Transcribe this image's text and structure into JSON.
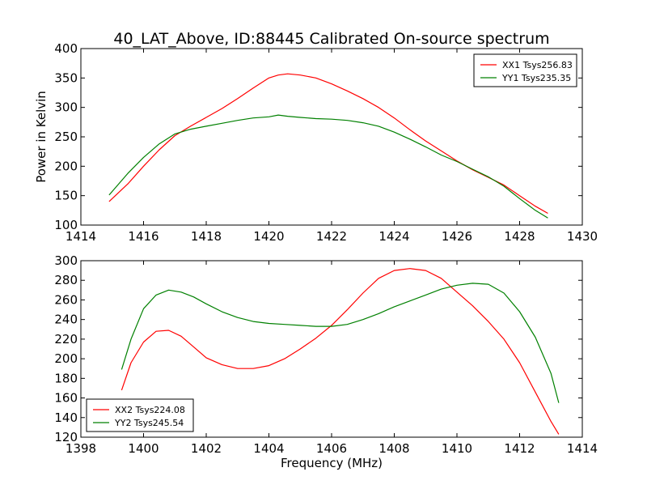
{
  "figure": {
    "title": "40_LAT_Above, ID:88445 Calibrated On-source spectrum",
    "ylabel": "Power in Kelvin",
    "xlabel": "Frequency (MHz)"
  },
  "chart_data": [
    {
      "type": "line",
      "xlim": [
        1414,
        1430
      ],
      "ylim": [
        100,
        400
      ],
      "xticks": [
        "1414",
        "1416",
        "1418",
        "1420",
        "1422",
        "1424",
        "1426",
        "1428",
        "1430"
      ],
      "yticks": [
        "100",
        "150",
        "200",
        "250",
        "300",
        "350",
        "400"
      ],
      "legend_position": "top-right",
      "series": [
        {
          "name": "XX1 Tsys256.83",
          "color": "#ff0000",
          "x": [
            1414.9,
            1415.5,
            1416,
            1416.5,
            1417,
            1417.5,
            1418,
            1418.5,
            1419,
            1419.5,
            1420,
            1420.3,
            1420.6,
            1421,
            1421.5,
            1422,
            1422.5,
            1423,
            1423.5,
            1424,
            1424.5,
            1425,
            1425.5,
            1426,
            1426.5,
            1427,
            1427.5,
            1428,
            1428.5,
            1428.9
          ],
          "y": [
            140,
            170,
            200,
            228,
            252,
            268,
            283,
            298,
            315,
            333,
            350,
            355,
            357,
            355,
            350,
            340,
            328,
            315,
            300,
            282,
            262,
            243,
            226,
            209,
            194,
            181,
            168,
            150,
            132,
            120
          ]
        },
        {
          "name": "YY1 Tsys235.35",
          "color": "#008000",
          "x": [
            1414.9,
            1415.5,
            1416,
            1416.5,
            1417,
            1417.5,
            1418,
            1418.5,
            1419,
            1419.5,
            1420,
            1420.3,
            1420.6,
            1421,
            1421.5,
            1422,
            1422.5,
            1423,
            1423.5,
            1424,
            1424.5,
            1425,
            1425.5,
            1426,
            1426.5,
            1427,
            1427.5,
            1428,
            1428.5,
            1428.9
          ],
          "y": [
            151,
            188,
            215,
            238,
            255,
            263,
            268,
            273,
            278,
            282,
            284,
            287,
            285,
            283,
            281,
            280,
            278,
            274,
            268,
            258,
            246,
            233,
            219,
            208,
            195,
            182,
            166,
            145,
            125,
            112
          ]
        }
      ]
    },
    {
      "type": "line",
      "xlim": [
        1398,
        1414
      ],
      "ylim": [
        120,
        300
      ],
      "xticks": [
        "1398",
        "1400",
        "1402",
        "1404",
        "1406",
        "1408",
        "1410",
        "1412",
        "1414"
      ],
      "yticks": [
        "120",
        "140",
        "160",
        "180",
        "200",
        "220",
        "240",
        "260",
        "280",
        "300"
      ],
      "legend_position": "bottom-left",
      "series": [
        {
          "name": "XX2 Tsys224.08",
          "color": "#ff0000",
          "x": [
            1399.3,
            1399.6,
            1400,
            1400.4,
            1400.8,
            1401.2,
            1401.6,
            1402,
            1402.5,
            1403,
            1403.5,
            1404,
            1404.5,
            1405,
            1405.5,
            1406,
            1406.5,
            1407,
            1407.5,
            1408,
            1408.5,
            1409,
            1409.5,
            1410,
            1410.5,
            1411,
            1411.5,
            1412,
            1412.5,
            1413,
            1413.25
          ],
          "y": [
            168,
            196,
            217,
            228,
            229,
            223,
            212,
            201,
            194,
            190,
            190,
            193,
            200,
            210,
            221,
            234,
            250,
            267,
            282,
            290,
            292,
            290,
            282,
            268,
            254,
            238,
            220,
            196,
            166,
            136,
            123
          ]
        },
        {
          "name": "YY2 Tsys245.54",
          "color": "#008000",
          "x": [
            1399.3,
            1399.6,
            1400,
            1400.4,
            1400.8,
            1401.2,
            1401.6,
            1402,
            1402.5,
            1403,
            1403.5,
            1404,
            1404.5,
            1405,
            1405.5,
            1406,
            1406.5,
            1407,
            1407.5,
            1408,
            1408.5,
            1409,
            1409.5,
            1410,
            1410.5,
            1411,
            1411.5,
            1412,
            1412.5,
            1413,
            1413.25
          ],
          "y": [
            189,
            220,
            251,
            265,
            270,
            268,
            263,
            256,
            248,
            242,
            238,
            236,
            235,
            234,
            233,
            233,
            235,
            240,
            246,
            253,
            259,
            265,
            271,
            275,
            277,
            276,
            267,
            248,
            222,
            185,
            155
          ]
        }
      ]
    }
  ]
}
